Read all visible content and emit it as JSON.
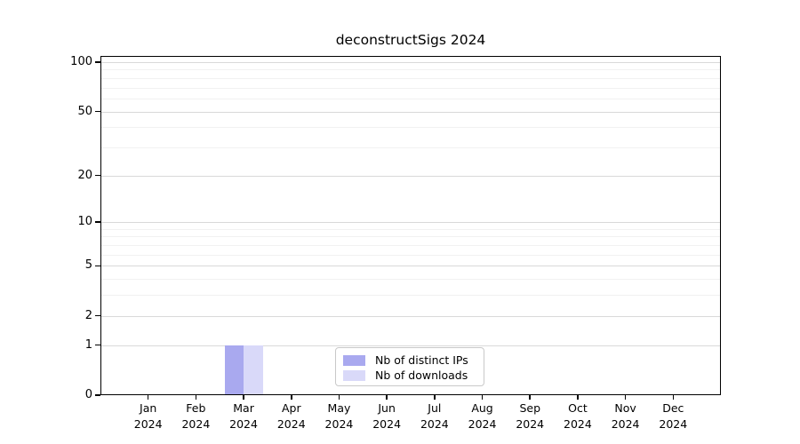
{
  "chart_data": {
    "type": "bar",
    "title": "deconstructSigs 2024",
    "year_label": "2024",
    "categories": [
      "Jan",
      "Feb",
      "Mar",
      "Apr",
      "May",
      "Jun",
      "Jul",
      "Aug",
      "Sep",
      "Oct",
      "Nov",
      "Dec"
    ],
    "series": [
      {
        "name": "Nb of distinct IPs",
        "color": "#a9a9ef",
        "values": [
          0,
          0,
          1,
          0,
          0,
          0,
          0,
          0,
          0,
          0,
          0,
          0
        ]
      },
      {
        "name": "Nb of downloads",
        "color": "#d9d9f9",
        "values": [
          0,
          0,
          1,
          0,
          0,
          0,
          0,
          0,
          0,
          0,
          0,
          0
        ]
      }
    ],
    "yscale": "log1p",
    "ylim": [
      0,
      110
    ],
    "yticks": [
      0,
      1,
      2,
      5,
      10,
      20,
      50,
      100
    ],
    "yticks_minor": [
      3,
      4,
      6,
      7,
      8,
      9,
      30,
      40,
      60,
      70,
      80,
      90
    ],
    "grid": true,
    "legend_position": "lower-center",
    "style": {
      "grid_major_color": "#d9d9d9",
      "grid_minor_color": "#f1f1f1",
      "axis_color": "#000000",
      "background": "#ffffff"
    }
  }
}
